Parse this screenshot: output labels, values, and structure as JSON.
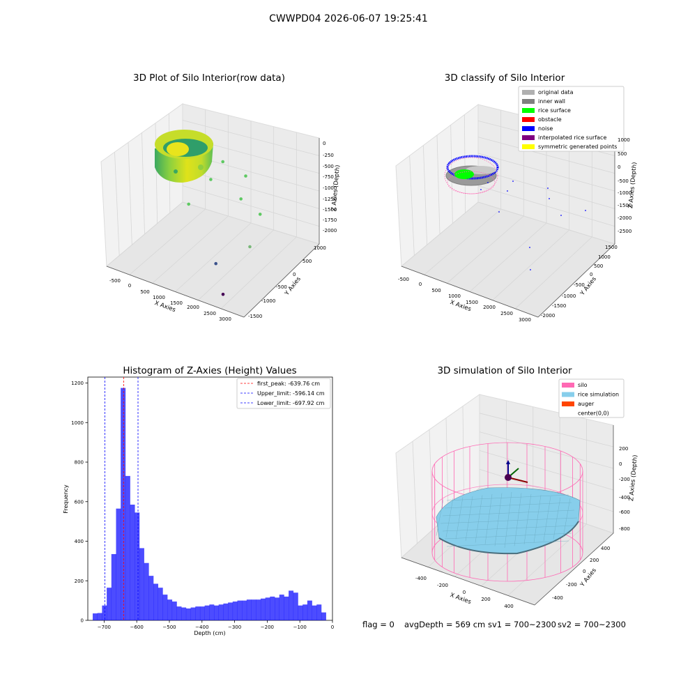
{
  "figure": {
    "suptitle": "CWWPD04 2026-06-07 19:25:41",
    "footer": {
      "flag": "flag = 0",
      "avg_depth": "avgDepth = 569 cm",
      "sv1": "sv1 = 700~2300",
      "sv2": "sv2 = 700~2300"
    }
  },
  "chart_data": [
    {
      "type": "scatter",
      "title": "3D Plot of Silo Interior(row data)",
      "xlabel": "X Axies",
      "ylabel": "Y Axies",
      "zlabel": "Z Axies (Depth)",
      "x_ticks": [
        "-500",
        "0",
        "500",
        "1000",
        "1500",
        "2000",
        "2500",
        "3000"
      ],
      "y_ticks": [
        "-1500",
        "-1000",
        "-500",
        "0",
        "500",
        "1000"
      ],
      "z_ticks": [
        "0",
        "-250",
        "-500",
        "-750",
        "-1000",
        "-1250",
        "-1500",
        "-1750",
        "-2000"
      ],
      "colormap": "viridis",
      "outliers": [
        {
          "x": 1000,
          "y": 400,
          "z": -450,
          "color": "#5ec962"
        },
        {
          "x": 1700,
          "y": 300,
          "z": -500,
          "color": "#5ec962"
        },
        {
          "x": 900,
          "y": 100,
          "z": -700,
          "color": "#5ec962"
        },
        {
          "x": 1800,
          "y": 0,
          "z": -800,
          "color": "#5ec962"
        },
        {
          "x": 2400,
          "y": -100,
          "z": -900,
          "color": "#5ec962"
        },
        {
          "x": 600,
          "y": -300,
          "z": -1100,
          "color": "#5ec962"
        },
        {
          "x": 2500,
          "y": -600,
          "z": -1300,
          "color": "#7ab87a"
        },
        {
          "x": 1800,
          "y": -900,
          "z": -1700,
          "color": "#3b528b"
        },
        {
          "x": 2300,
          "y": -1300,
          "z": -2000,
          "color": "#440154"
        }
      ]
    },
    {
      "type": "scatter",
      "title": "3D classify of Silo Interior",
      "xlabel": "X Axies",
      "ylabel": "Y Axies",
      "zlabel": "Z Axies (Depth)",
      "x_ticks": [
        "-500",
        "0",
        "500",
        "1000",
        "1500",
        "2000",
        "2500",
        "3000"
      ],
      "y_ticks": [
        "-2000",
        "-1500",
        "-1000",
        "-500",
        "0",
        "500",
        "1000",
        "1500"
      ],
      "z_ticks": [
        "1000",
        "500",
        "0",
        "-500",
        "-1000",
        "-1500",
        "-2000",
        "-2500"
      ],
      "legend": [
        {
          "label": "original data",
          "color": "#b0b0b0"
        },
        {
          "label": "inner wall",
          "color": "#808080"
        },
        {
          "label": "rice surface",
          "color": "#00ff00"
        },
        {
          "label": "obstacle",
          "color": "#ff0000"
        },
        {
          "label": "noise",
          "color": "#0000ff"
        },
        {
          "label": "interpolated rice surface",
          "color": "#800080"
        },
        {
          "label": "symmetric generated points",
          "color": "#ffff00"
        }
      ],
      "legend_loc": "upper right"
    },
    {
      "type": "bar",
      "title": "Histogram of Z-Axies (Height) Values",
      "xlabel": "Depth (cm)",
      "ylabel": "Frequency",
      "xlim": [
        -750,
        0
      ],
      "ylim": [
        0,
        1230
      ],
      "x_ticks": [
        -700,
        -600,
        -500,
        -400,
        -300,
        -200,
        -100,
        0
      ],
      "y_ticks": [
        0,
        200,
        400,
        600,
        800,
        1000,
        1200
      ],
      "bin_start": -735,
      "bin_width": 14.3,
      "values": [
        35,
        37,
        75,
        165,
        335,
        565,
        1175,
        730,
        585,
        545,
        365,
        290,
        225,
        185,
        165,
        130,
        105,
        95,
        70,
        65,
        60,
        65,
        70,
        70,
        75,
        80,
        75,
        80,
        85,
        90,
        95,
        100,
        100,
        105,
        105,
        105,
        110,
        115,
        120,
        115,
        130,
        120,
        150,
        140,
        75,
        80,
        100,
        75,
        80,
        40
      ],
      "bar_color": "#0000ff",
      "lines": [
        {
          "label": "first_peak: -639.76 cm",
          "x": -639.76,
          "color": "#ff0000"
        },
        {
          "label": "Upper_limit: -596.14 cm",
          "x": -596.14,
          "color": "#0000ff"
        },
        {
          "label": "Lower_limit: -697.92 cm",
          "x": -697.92,
          "color": "#0000ff"
        }
      ],
      "legend_loc": "upper right"
    },
    {
      "type": "area",
      "title": "3D simulation of Silo Interior",
      "xlabel": "X Axies",
      "ylabel": "Y Axies",
      "zlabel": "Z Axies (Depth)",
      "x_ticks": [
        "-400",
        "-200",
        "0",
        "200",
        "400"
      ],
      "y_ticks": [
        "-400",
        "-200",
        "0",
        "200",
        "400"
      ],
      "z_ticks": [
        "200",
        "0",
        "-200",
        "-400",
        "-600",
        "-800"
      ],
      "legend": [
        {
          "label": "silo",
          "color": "#ff69b4"
        },
        {
          "label": "rice simulation",
          "color": "#87ceeb"
        },
        {
          "label": "auger",
          "color": "#ff4500"
        },
        {
          "label": "center(0,0)",
          "color": ""
        }
      ],
      "legend_loc": "upper right"
    }
  ]
}
